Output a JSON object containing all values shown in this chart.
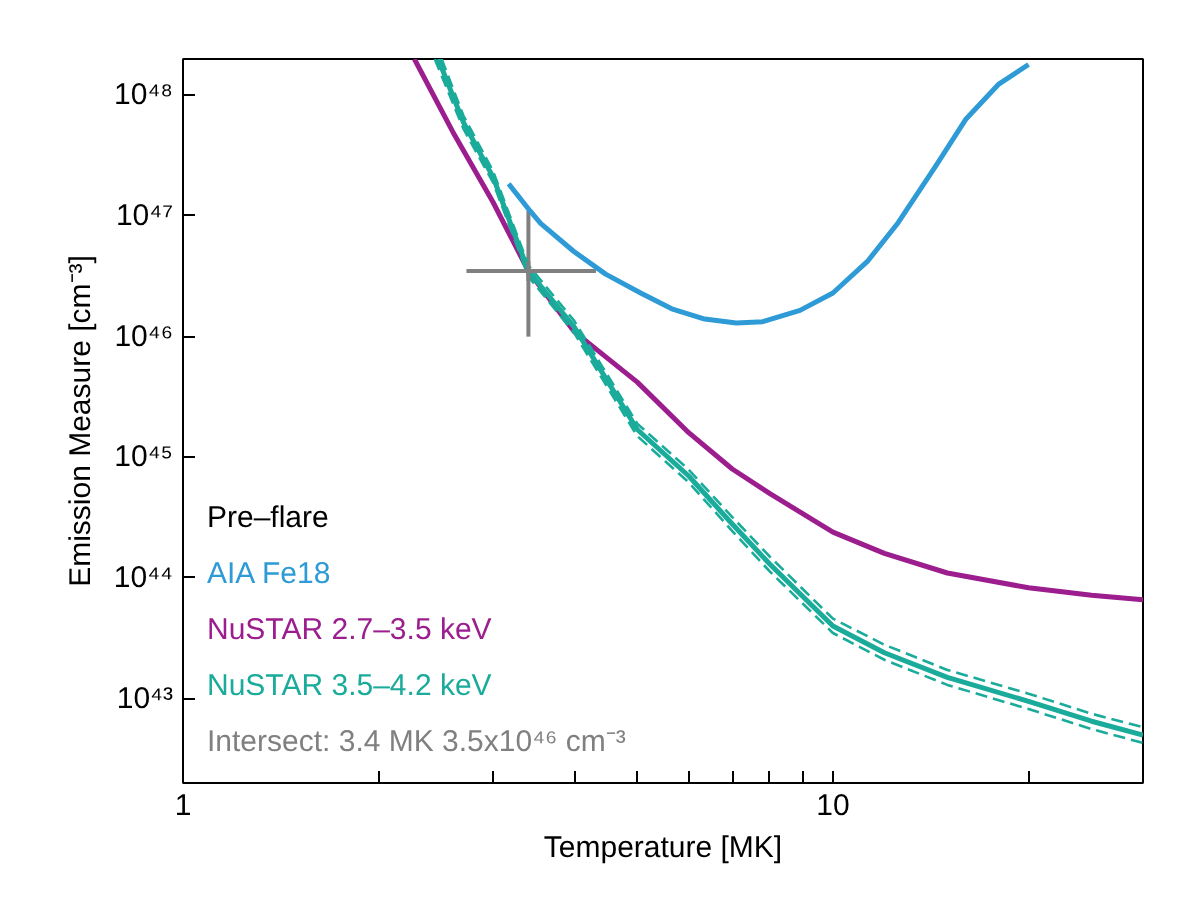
{
  "chart_data": {
    "type": "line",
    "xlabel": "Temperature [MK]",
    "ylabel": "Emission Measure [cm⁻³]",
    "log": "xy",
    "grid": false,
    "legend": "bottom left",
    "legend_title": "Pre‒flare",
    "xlim": [
      1,
      30
    ],
    "ylim": [
      2e+42,
      2e+48
    ],
    "xticks": [
      {
        "value": 1,
        "label": "1"
      },
      {
        "value": 2,
        "label": null
      },
      {
        "value": 3,
        "label": null
      },
      {
        "value": 4,
        "label": null
      },
      {
        "value": 5,
        "label": null
      },
      {
        "value": 6,
        "label": null
      },
      {
        "value": 7,
        "label": null
      },
      {
        "value": 8,
        "label": null
      },
      {
        "value": 9,
        "label": null
      },
      {
        "value": 10,
        "label": "10"
      },
      {
        "value": 20,
        "label": null
      }
    ],
    "yticks": [
      {
        "value": 1e+43,
        "label": "10⁴³"
      },
      {
        "value": 1e+44,
        "label": "10⁴⁴"
      },
      {
        "value": 1e+45,
        "label": "10⁴⁵"
      },
      {
        "value": 1e+46,
        "label": "10⁴⁶"
      },
      {
        "value": 1e+47,
        "label": "10⁴⁷"
      },
      {
        "value": 1e+48,
        "label": "10⁴⁸"
      }
    ],
    "series": [
      {
        "name": "AIA Fe18",
        "color": "#2e9bd6",
        "line_style": "solid",
        "x": [
          3.17,
          3.42,
          3.55,
          3.99,
          4.47,
          5.06,
          5.65,
          6.35,
          7.1,
          7.8,
          8.9,
          10,
          11.3,
          12.6,
          14.4,
          16,
          18,
          20
        ],
        "values": [
          1.85e+47,
          1.1e+47,
          8.7e+46,
          5.1e+46,
          3.3e+46,
          2.3e+46,
          1.7e+46,
          1.4e+46,
          1.3e+46,
          1.33e+46,
          1.65e+46,
          2.3e+46,
          4.2e+46,
          8.8e+46,
          2.6e+47,
          6.3e+47,
          1.24e+48,
          1.8e+48
        ]
      },
      {
        "name": "NuSTAR 2.7‒3.5 keV",
        "color": "#9b1d8e",
        "line_style": "solid",
        "x": [
          2.27,
          2.6,
          3,
          3.4,
          4,
          5,
          6,
          7,
          8,
          10,
          12,
          15,
          20,
          25,
          30
        ],
        "values": [
          2e+48,
          5e+47,
          1.3e+47,
          3.5e+46,
          1.1e+46,
          4.2e+45,
          1.6e+45,
          8e+44,
          5e+44,
          2.4e+44,
          1.6e+44,
          1.1e+44,
          8.3e+43,
          7.2e+43,
          6.6e+43
        ]
      },
      {
        "name": "NuSTAR 3.5‒4.2 keV",
        "color": "#1aab9b",
        "line_style": "solid",
        "x": [
          2.47,
          2.7,
          3,
          3.4,
          4,
          5,
          6,
          7,
          8,
          10,
          12,
          15,
          20,
          25,
          30
        ],
        "values": [
          2e+48,
          6e+47,
          2.1e+47,
          3.5e+46,
          1.2e+46,
          1.7e+45,
          7e+44,
          2.8e+44,
          1.3e+44,
          4e+43,
          2.4e+43,
          1.5e+43,
          9.5e+42,
          6.5e+42,
          5e+42
        ]
      },
      {
        "color": "#1aab9b",
        "line_style": "dashed",
        "x": [
          2.5,
          2.7,
          3,
          3.4,
          4,
          5,
          6,
          7,
          8,
          10,
          12,
          15,
          20,
          25,
          30
        ],
        "values": [
          2e+48,
          6.8e+47,
          2.35e+47,
          3.9e+46,
          1.35e+46,
          1.9e+45,
          7.9e+44,
          3.2e+44,
          1.5e+44,
          4.6e+43,
          2.8e+43,
          1.73e+43,
          1.1e+43,
          7.5e+42,
          5.8e+42
        ]
      },
      {
        "color": "#1aab9b",
        "line_style": "dashed",
        "x": [
          2.44,
          2.7,
          3,
          3.4,
          4,
          5,
          6,
          7,
          8,
          10,
          12,
          15,
          20,
          25,
          30
        ],
        "values": [
          2e+48,
          5.3e+47,
          1.9e+47,
          3.15e+46,
          1.07e+46,
          1.5e+45,
          6.2e+44,
          2.45e+44,
          1.13e+44,
          3.5e+43,
          2.1e+43,
          1.3e+43,
          8.2e+42,
          5.6e+42,
          4.3e+42
        ]
      },
      {
        "name": "Intersect: 3.4 MK 3.5x10⁴⁶ cm⁻³",
        "type": "scatter",
        "marker": "cross",
        "color": "#808080",
        "x": [
          3.4
        ],
        "values": [
          3.5e+46
        ],
        "errors": [
          [
            1e+46,
            1.1e+47
          ]
        ],
        "xerrors": [
          [
            2.73,
            4.32
          ]
        ]
      }
    ]
  }
}
